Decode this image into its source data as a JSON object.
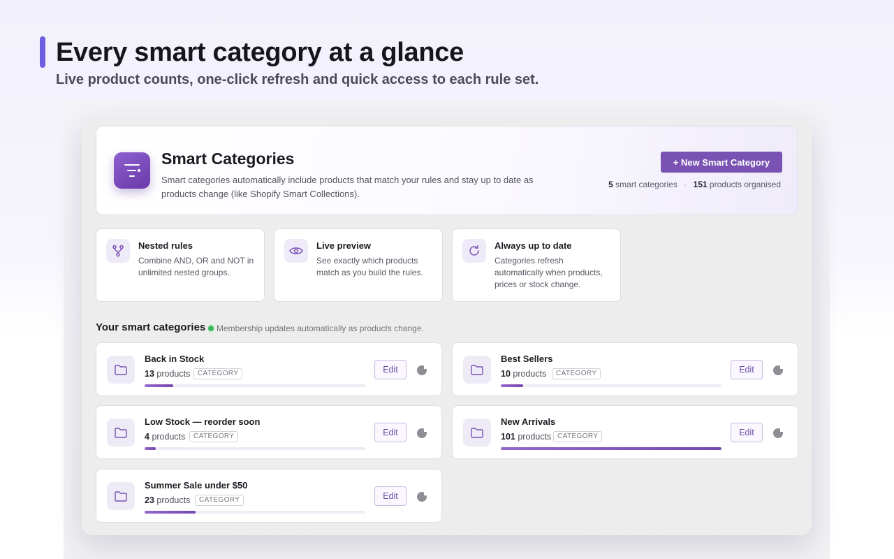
{
  "hero": {
    "title": "Every smart category at a glance",
    "subtitle": "Live product counts, one-click refresh and quick access to each rule set."
  },
  "header": {
    "title": "Smart Categories",
    "description": "Smart categories automatically include products that match your rules and stay up to date as products change (like Shopify Smart Collections).",
    "new_button_label": "+ New Smart Category",
    "stats": {
      "categories_count": "5",
      "categories_label": "smart categories",
      "products_count": "151",
      "products_label": "products organised"
    },
    "icon": "filter-lines-icon"
  },
  "features": [
    {
      "title": "Nested rules",
      "description": "Combine AND, OR and NOT in unlimited nested groups.",
      "icon": "branch-icon"
    },
    {
      "title": "Live preview",
      "description": "See exactly which products match as you build the rules.",
      "icon": "eye-icon"
    },
    {
      "title": "Always up to date",
      "description": "Categories refresh automatically when products, prices or stock change.",
      "icon": "refresh-icon"
    }
  ],
  "section": {
    "title": "Your smart categories",
    "note": "Membership updates automatically as products change."
  },
  "categories": [
    {
      "name": "Back in Stock",
      "count": "13",
      "count_label": "products",
      "tag": "CATEGORY",
      "edit_label": "Edit",
      "fill": 0.13
    },
    {
      "name": "Best Sellers",
      "count": "10",
      "count_label": "products",
      "tag": "CATEGORY",
      "edit_label": "Edit",
      "fill": 0.1
    },
    {
      "name": "Low Stock — reorder soon",
      "count": "4",
      "count_label": "products",
      "tag": "CATEGORY",
      "edit_label": "Edit",
      "fill": 0.05
    },
    {
      "name": "New Arrivals",
      "count": "101",
      "count_label": "products",
      "tag": "CATEGORY",
      "edit_label": "Edit",
      "fill": 1.0
    },
    {
      "name": "Summer Sale under $50",
      "count": "23",
      "count_label": "products",
      "tag": "CATEGORY",
      "edit_label": "Edit",
      "fill": 0.23
    }
  ],
  "colors": {
    "accent": "#7a52b3",
    "hero_accent": "#6e5fe0",
    "live_dot": "#3cb45c"
  }
}
